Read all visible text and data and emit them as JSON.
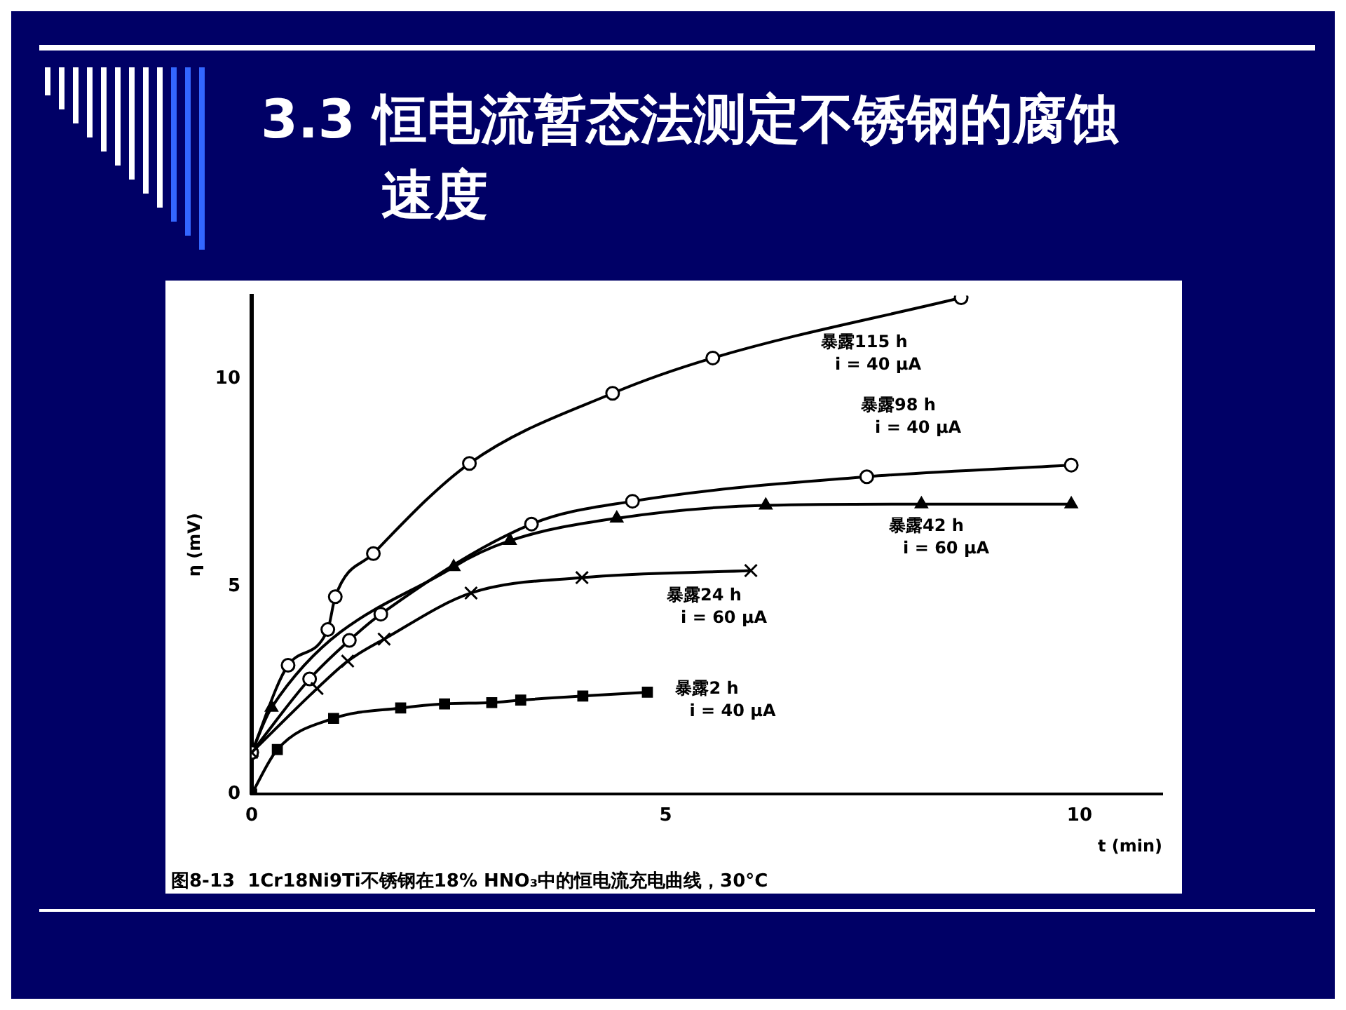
{
  "chart_data": {
    "type": "line",
    "title": "3.3 恒电流暂态法测定不锈钢的腐蚀速度",
    "xlabel": "t (min)",
    "ylabel": "η (mV)",
    "xlim": [
      0,
      11
    ],
    "ylim": [
      0,
      12
    ],
    "xticks": [
      0,
      5,
      10
    ],
    "yticks": [
      0,
      5,
      10
    ],
    "grid": false,
    "legend": false,
    "line_style": "solid",
    "annotations": [
      "图8-13  1Cr18Ni9Ti不锈钢在18% HNO₃中的恒电流充电曲线，30°C"
    ],
    "series": [
      {
        "name": "暴露115 h\ni = 40 μA",
        "color": "#000000",
        "marker": "circle",
        "x": [
          0,
          0.44,
          0.92,
          1.01,
          1.47,
          2.63,
          4.36,
          5.57,
          8.57
        ],
        "values": [
          1.0,
          3.1,
          3.96,
          4.75,
          5.79,
          7.96,
          9.65,
          10.5,
          11.95
        ]
      },
      {
        "name": "暴露98 h\ni = 40 μA",
        "color": "#000000",
        "marker": "circle",
        "x": [
          0,
          0.7,
          1.18,
          1.56,
          3.38,
          4.6,
          7.43,
          9.9
        ],
        "values": [
          1.0,
          2.77,
          3.7,
          4.33,
          6.5,
          7.05,
          7.64,
          7.92
        ]
      },
      {
        "name": "暴露42 h\ni = 60 μA",
        "color": "#000000",
        "marker": "triangle",
        "x": [
          0,
          0.24,
          2.44,
          3.12,
          4.41,
          6.21,
          8.09,
          9.9
        ],
        "values": [
          1.0,
          2.08,
          5.47,
          6.1,
          6.64,
          6.95,
          6.98,
          6.98
        ]
      },
      {
        "name": "暴露24 h\ni = 60 μA",
        "color": "#000000",
        "marker": "cross",
        "x": [
          0,
          0.79,
          1.16,
          1.6,
          2.65,
          3.99,
          6.03
        ],
        "values": [
          1.0,
          2.54,
          3.2,
          3.73,
          4.84,
          5.21,
          5.38
        ]
      },
      {
        "name": "暴露2 h\ni = 40 μA",
        "color": "#000000",
        "marker": "square",
        "x": [
          0,
          0.31,
          0.99,
          1.8,
          2.33,
          2.9,
          3.25,
          4.0,
          4.78
        ],
        "values": [
          0,
          1.07,
          1.82,
          2.07,
          2.17,
          2.2,
          2.26,
          2.36,
          2.45
        ]
      }
    ]
  }
}
